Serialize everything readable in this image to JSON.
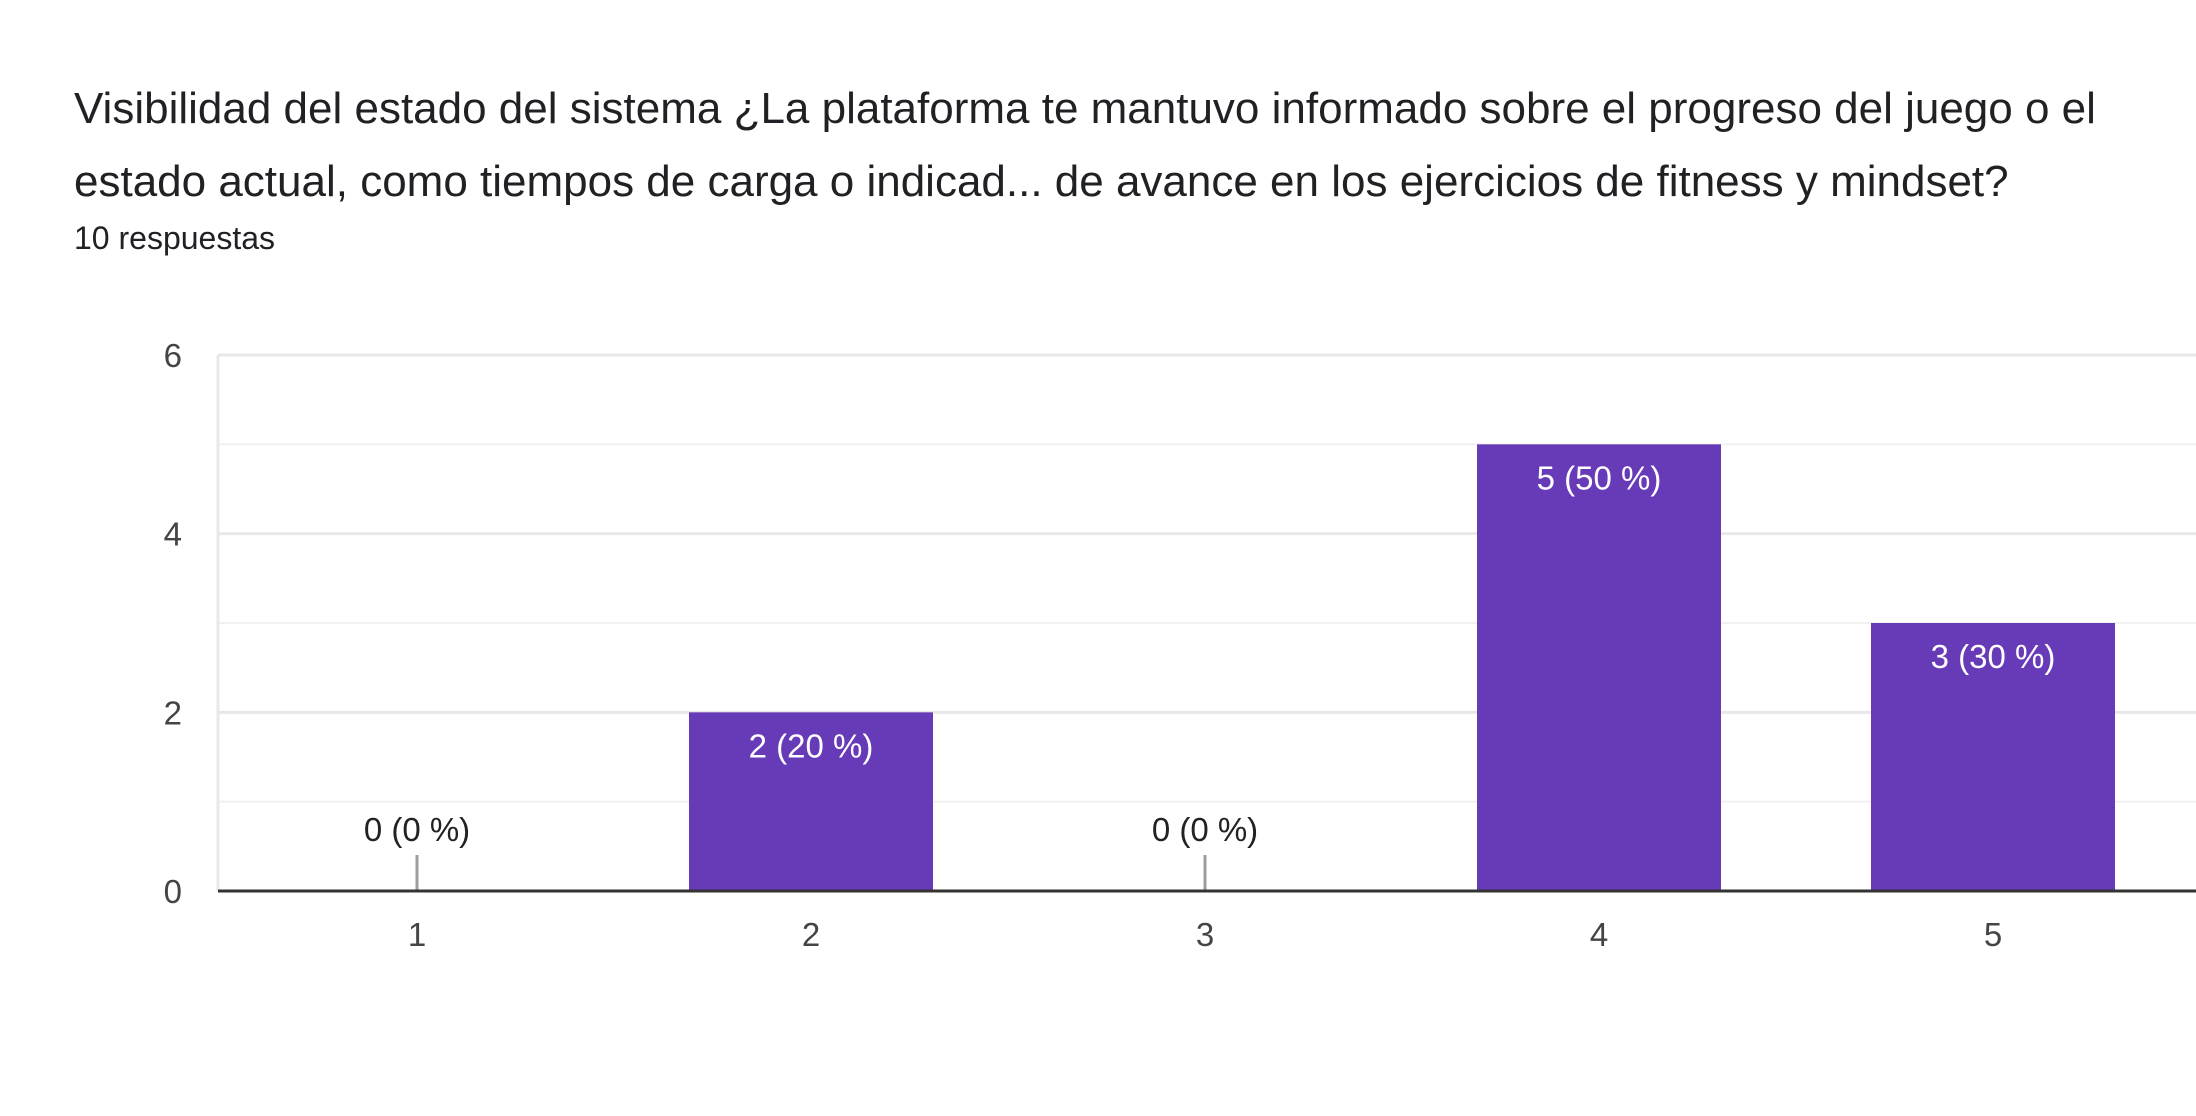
{
  "question": {
    "title": "Visibilidad del estado del sistema ¿La plataforma te mantuvo informado sobre el progreso del juego o el estado actual, como tiempos de carga o indicad... de avance en los ejercicios de fitness y mindset?",
    "response_count": "10 respuestas"
  },
  "colors": {
    "bar": "#673ab7",
    "grid": "#e8e8e8",
    "axis": "#333333",
    "zero_marker": "#9e9e9e"
  },
  "chart_data": {
    "type": "bar",
    "categories": [
      "1",
      "2",
      "3",
      "4",
      "5"
    ],
    "values": [
      0,
      2,
      0,
      5,
      3
    ],
    "data_labels": [
      "0 (0 %)",
      "2 (20 %)",
      "0 (0 %)",
      "5 (50 %)",
      "3 (30 %)"
    ],
    "ylim": [
      0,
      6
    ],
    "y_ticks": [
      0,
      2,
      4,
      6
    ],
    "y_minor_ticks": [
      1,
      3,
      5
    ],
    "grid": true,
    "xlabel": "",
    "ylabel": ""
  }
}
